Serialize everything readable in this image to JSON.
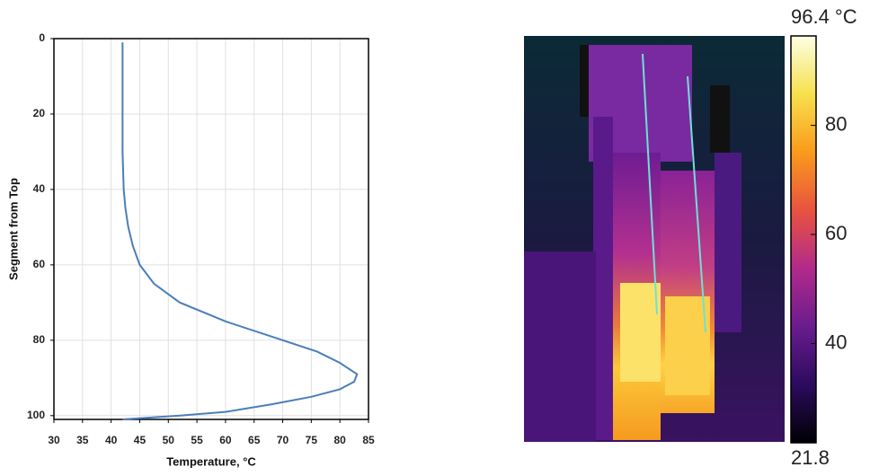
{
  "chart_data": [
    {
      "type": "line",
      "xlabel": "Temperature, °C",
      "ylabel": "Segment from Top",
      "x": [
        42,
        42,
        42,
        42,
        42.2,
        42.5,
        43,
        43.8,
        45,
        47.5,
        52,
        60,
        70,
        76,
        80,
        83,
        82.5,
        80,
        75,
        68,
        60,
        52,
        47,
        42
      ],
      "y": [
        1,
        10,
        20,
        30,
        40,
        45,
        50,
        55,
        60,
        65,
        70,
        75,
        80,
        83,
        86,
        89,
        91,
        93,
        95,
        97,
        99,
        100,
        100.5,
        101
      ],
      "color": "#4a7ebb",
      "xlim": [
        30,
        85
      ],
      "xticks": [
        30,
        35,
        40,
        45,
        50,
        55,
        60,
        65,
        70,
        75,
        80,
        85
      ],
      "ylim": [
        0,
        101
      ],
      "yticks": [
        0,
        20,
        40,
        60,
        80,
        100
      ],
      "y_inverted": true,
      "grid": true
    },
    {
      "type": "colorbar",
      "ylim": [
        21.8,
        96.4
      ],
      "yticks": [
        21.8,
        40,
        60,
        80,
        {
          "value": 96.4,
          "label": "96.4 °C"
        }
      ],
      "colors": [
        "#000004",
        "#2c0b5e",
        "#6a1c8e",
        "#b22a8b",
        "#e8533f",
        "#f99b1b",
        "#f7e04d",
        "#fcffe4"
      ]
    }
  ]
}
